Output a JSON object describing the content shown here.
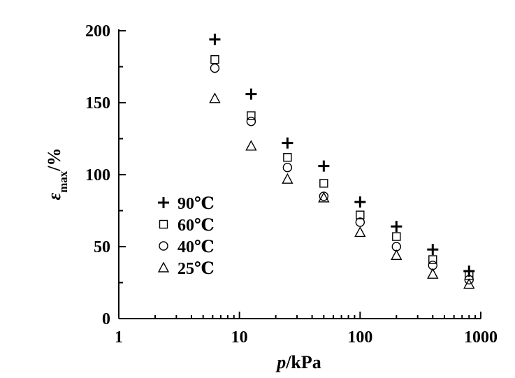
{
  "chart_data": {
    "type": "scatter",
    "x_scale": "log",
    "xlabel": {
      "var": "p",
      "unit": "/kPa"
    },
    "ylabel": {
      "var": "ε",
      "sub": "max",
      "unit": "/%"
    },
    "xlim": [
      1,
      1000
    ],
    "ylim": [
      0,
      200
    ],
    "x_ticks": [
      1,
      10,
      100,
      1000
    ],
    "x_tick_labels": [
      "1",
      "10",
      "100",
      "1000"
    ],
    "y_ticks": [
      0,
      50,
      100,
      150,
      200
    ],
    "y_tick_labels": [
      "0",
      "50",
      "100",
      "150",
      "200"
    ],
    "grid": false,
    "legend_position": "center-left",
    "series": [
      {
        "name": "90℃",
        "marker": "plus",
        "x": [
          6.25,
          12.5,
          25,
          50,
          100,
          200,
          400,
          800
        ],
        "y": [
          194,
          156,
          122,
          106,
          81,
          64,
          48,
          33
        ]
      },
      {
        "name": "60℃",
        "marker": "square",
        "x": [
          6.25,
          12.5,
          25,
          50,
          100,
          200,
          400,
          800
        ],
        "y": [
          180,
          141,
          112,
          94,
          72,
          57,
          41,
          30
        ]
      },
      {
        "name": "40℃",
        "marker": "circle",
        "x": [
          6.25,
          12.5,
          25,
          50,
          100,
          200,
          400,
          800
        ],
        "y": [
          174,
          137,
          105,
          85,
          67,
          50,
          37,
          27
        ]
      },
      {
        "name": "25℃",
        "marker": "triangle",
        "x": [
          6.25,
          12.5,
          25,
          50,
          100,
          200,
          400,
          800
        ],
        "y": [
          153,
          120,
          97,
          84,
          60,
          44,
          31,
          24
        ]
      }
    ]
  }
}
